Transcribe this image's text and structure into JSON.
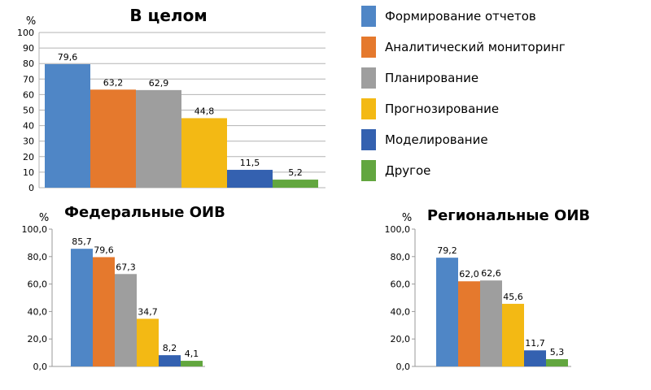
{
  "legend": [
    {
      "label": "Формирование отчетов",
      "color": "#4f86c6"
    },
    {
      "label": "Аналитический мониторинг",
      "color": "#e5792d"
    },
    {
      "label": "Планирование",
      "color": "#9e9e9e"
    },
    {
      "label": "Прогнозирование",
      "color": "#f3b914"
    },
    {
      "label": "Моделирование",
      "color": "#3461b0"
    },
    {
      "label": "Другое",
      "color": "#62a63f"
    }
  ],
  "chart_data": [
    {
      "type": "bar",
      "title": "В целом",
      "unit": "%",
      "ylim": [
        0,
        100
      ],
      "yticks": [
        0,
        10,
        20,
        30,
        40,
        50,
        60,
        70,
        80,
        90,
        100
      ],
      "ytick_labels": [
        "0",
        "10",
        "20",
        "30",
        "40",
        "50",
        "60",
        "70",
        "80",
        "90",
        "100"
      ],
      "categories": [
        "Формирование отчетов",
        "Аналитический мониторинг",
        "Планирование",
        "Прогнозирование",
        "Моделирование",
        "Другое"
      ],
      "values": [
        79.6,
        63.2,
        62.9,
        44.8,
        11.5,
        5.2
      ],
      "value_labels": [
        "79,6",
        "63,2",
        "62,9",
        "44,8",
        "11,5",
        "5,2"
      ],
      "grid": true
    },
    {
      "type": "bar",
      "title": "Федеральные ОИВ",
      "unit": "%",
      "ylim": [
        0,
        100
      ],
      "yticks": [
        0,
        20,
        40,
        60,
        80,
        100
      ],
      "ytick_labels": [
        "0,0",
        "20,0",
        "40,0",
        "60,0",
        "80,0",
        "100,0"
      ],
      "categories": [
        "Формирование отчетов",
        "Аналитический мониторинг",
        "Планирование",
        "Прогнозирование",
        "Моделирование",
        "Другое"
      ],
      "values": [
        85.7,
        79.6,
        67.3,
        34.7,
        8.2,
        4.1
      ],
      "value_labels": [
        "85,7",
        "79,6",
        "67,3",
        "34,7",
        "8,2",
        "4,1"
      ],
      "grid": false
    },
    {
      "type": "bar",
      "title": "Региональные ОИВ",
      "unit": "%",
      "ylim": [
        0,
        100
      ],
      "yticks": [
        0,
        20,
        40,
        60,
        80,
        100
      ],
      "ytick_labels": [
        "0,0",
        "20,0",
        "40,0",
        "60,0",
        "80,0",
        "100,0"
      ],
      "categories": [
        "Формирование отчетов",
        "Аналитический мониторинг",
        "Планирование",
        "Прогнозирование",
        "Моделирование",
        "Другое"
      ],
      "values": [
        79.2,
        62.0,
        62.6,
        45.6,
        11.7,
        5.3
      ],
      "value_labels": [
        "79,2",
        "62,0",
        "62,6",
        "45,6",
        "11,7",
        "5,3"
      ],
      "grid": false
    }
  ]
}
